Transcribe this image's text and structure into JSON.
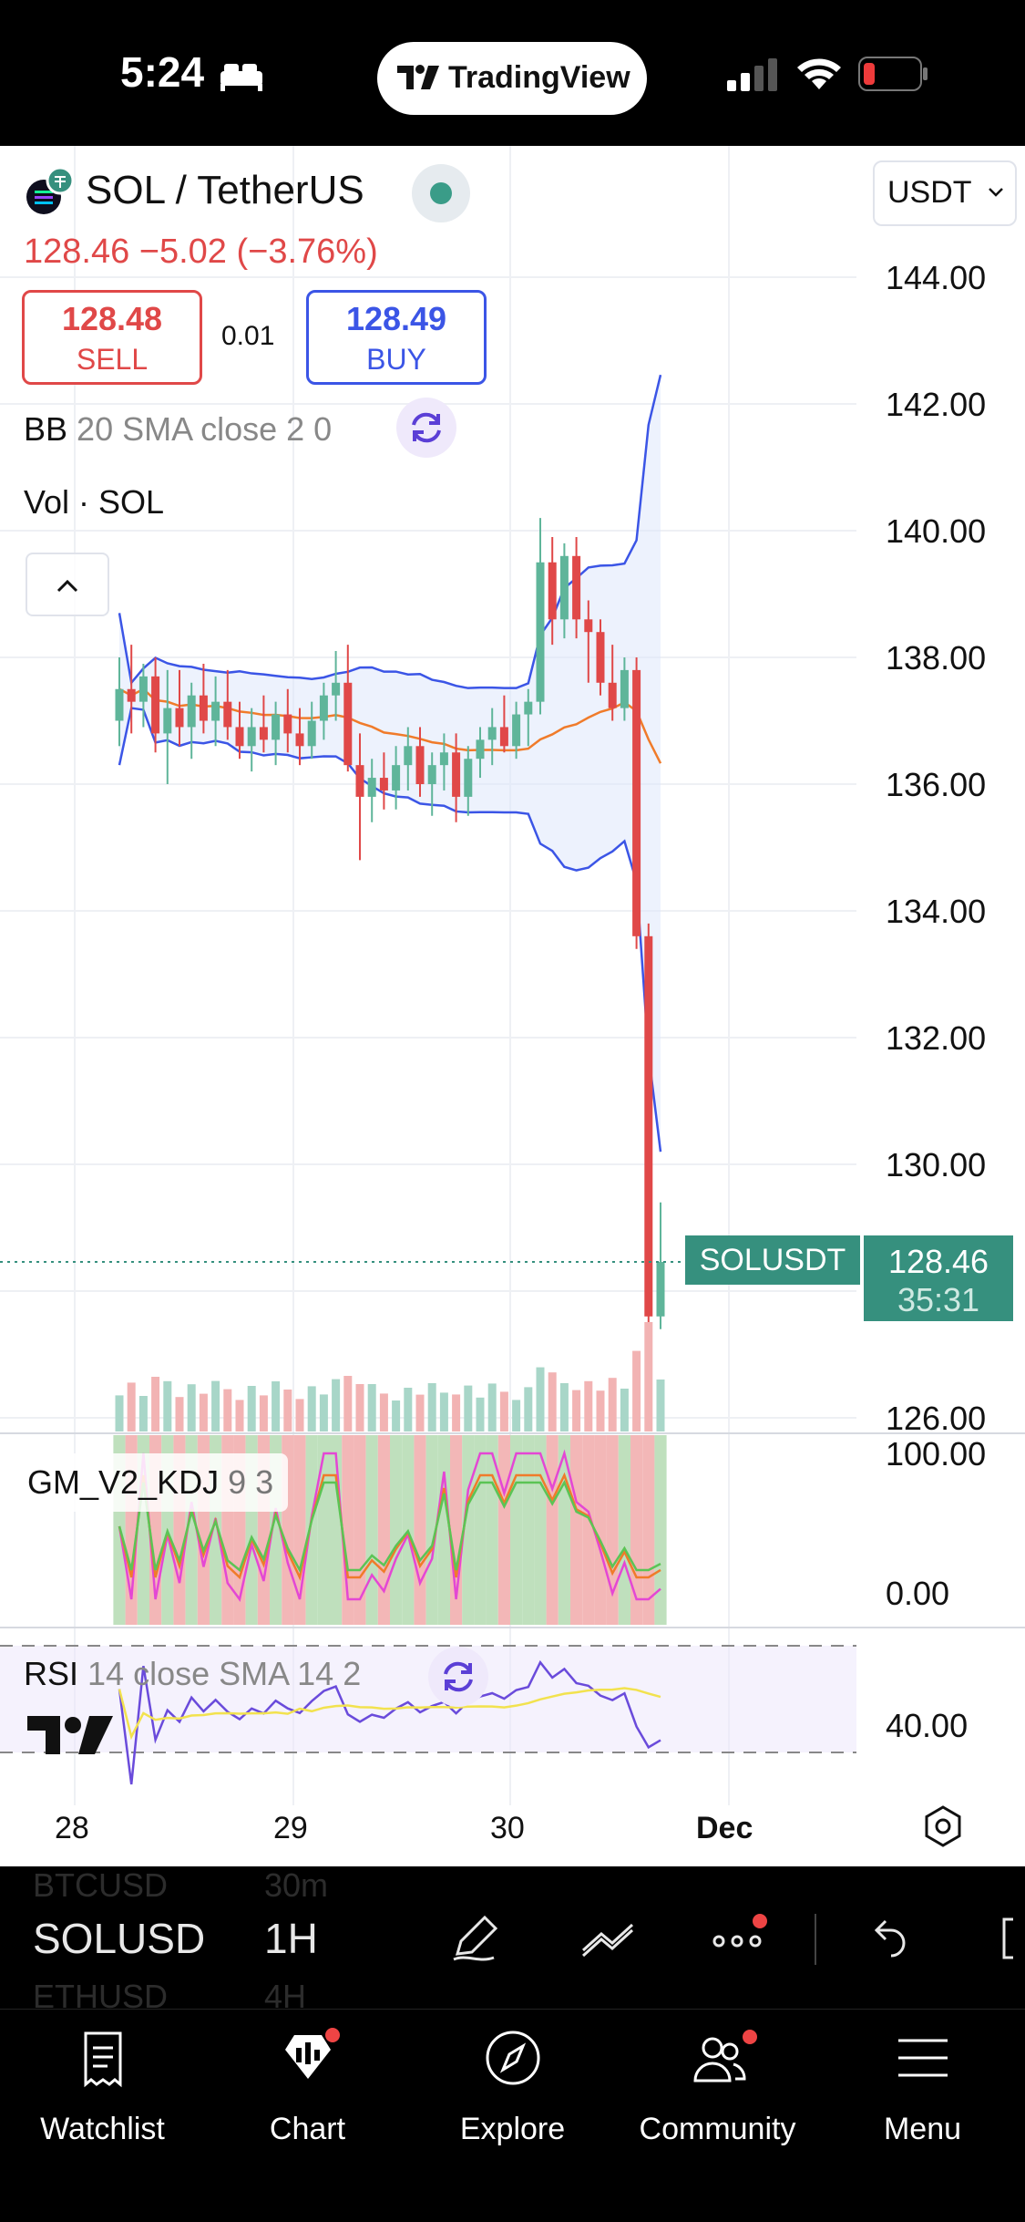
{
  "status_bar": {
    "time": "5:24",
    "app_pill": "TradingView"
  },
  "header": {
    "symbol": "SOL / TetherUS",
    "currency": "USDT",
    "quote": "128.46  −5.02 (−3.76%)",
    "sell": {
      "price": "128.48",
      "label": "SELL"
    },
    "buy": {
      "price": "128.49",
      "label": "BUY"
    },
    "spread": "0.01"
  },
  "indicators": {
    "bb": {
      "name": "BB",
      "params": "20 SMA close 2 0"
    },
    "vol": "Vol · SOL",
    "kdj": {
      "name": "GM_V2_KDJ",
      "params": "9 3"
    },
    "rsi": {
      "name": "RSI",
      "params": "14 close SMA 14 2"
    }
  },
  "axis": {
    "price_ticks": [
      "144.00",
      "142.00",
      "140.00",
      "138.00",
      "136.00",
      "134.00",
      "132.00",
      "130.00",
      "126.00"
    ],
    "kdj_ticks": [
      "100.00",
      "0.00"
    ],
    "rsi_ticks": [
      "40.00"
    ],
    "x_ticks": [
      "28",
      "29",
      "30",
      "Dec"
    ]
  },
  "last_price": {
    "symbol_tag": "SOLUSDT",
    "price": "128.46",
    "countdown": "35:31"
  },
  "toolbar": {
    "symbol": "SOLUSD",
    "interval": "1H",
    "ghost_prev_symbol": "BTCUSD",
    "ghost_next_symbol": "ETHUSD",
    "ghost_prev_interval": "30m",
    "ghost_next_interval": "4H"
  },
  "tabs": [
    {
      "label": "Watchlist",
      "icon": "watchlist-icon"
    },
    {
      "label": "Chart",
      "icon": "chart-icon"
    },
    {
      "label": "Explore",
      "icon": "compass-icon"
    },
    {
      "label": "Community",
      "icon": "community-icon"
    },
    {
      "label": "Menu",
      "icon": "menu-icon"
    }
  ],
  "colors": {
    "up": "#5fb59a",
    "down": "#e04848",
    "bb_band": "#3b55e6",
    "bb_basis": "#f07b2a",
    "accent": "#36907e"
  },
  "chart_data": {
    "type": "candlestick",
    "symbol": "SOL / TetherUS",
    "interval": "1H",
    "ylim": [
      125.5,
      145
    ],
    "candles": [
      {
        "o": 137.0,
        "h": 138.0,
        "l": 136.6,
        "c": 137.5
      },
      {
        "o": 137.5,
        "h": 138.2,
        "l": 136.8,
        "c": 137.3
      },
      {
        "o": 137.3,
        "h": 137.9,
        "l": 136.9,
        "c": 137.7
      },
      {
        "o": 137.7,
        "h": 138.0,
        "l": 136.5,
        "c": 136.8
      },
      {
        "o": 136.8,
        "h": 137.8,
        "l": 136.0,
        "c": 137.2
      },
      {
        "o": 137.2,
        "h": 137.8,
        "l": 136.6,
        "c": 136.9
      },
      {
        "o": 136.9,
        "h": 137.6,
        "l": 136.4,
        "c": 137.4
      },
      {
        "o": 137.4,
        "h": 137.9,
        "l": 136.8,
        "c": 137.0
      },
      {
        "o": 137.0,
        "h": 137.7,
        "l": 136.6,
        "c": 137.3
      },
      {
        "o": 137.3,
        "h": 137.8,
        "l": 136.7,
        "c": 136.9
      },
      {
        "o": 136.9,
        "h": 137.3,
        "l": 136.4,
        "c": 136.6
      },
      {
        "o": 136.6,
        "h": 137.2,
        "l": 136.2,
        "c": 136.9
      },
      {
        "o": 136.9,
        "h": 137.4,
        "l": 136.5,
        "c": 136.7
      },
      {
        "o": 136.7,
        "h": 137.3,
        "l": 136.3,
        "c": 137.1
      },
      {
        "o": 137.1,
        "h": 137.5,
        "l": 136.5,
        "c": 136.8
      },
      {
        "o": 136.8,
        "h": 137.2,
        "l": 136.3,
        "c": 136.6
      },
      {
        "o": 136.6,
        "h": 137.3,
        "l": 136.4,
        "c": 137.0
      },
      {
        "o": 137.0,
        "h": 137.6,
        "l": 136.7,
        "c": 137.4
      },
      {
        "o": 137.4,
        "h": 138.1,
        "l": 137.0,
        "c": 137.6
      },
      {
        "o": 137.6,
        "h": 138.2,
        "l": 136.2,
        "c": 136.3
      },
      {
        "o": 136.3,
        "h": 136.8,
        "l": 134.8,
        "c": 135.8
      },
      {
        "o": 135.8,
        "h": 136.4,
        "l": 135.4,
        "c": 136.1
      },
      {
        "o": 136.1,
        "h": 136.5,
        "l": 135.6,
        "c": 135.9
      },
      {
        "o": 135.9,
        "h": 136.6,
        "l": 135.6,
        "c": 136.3
      },
      {
        "o": 136.3,
        "h": 136.9,
        "l": 135.9,
        "c": 136.6
      },
      {
        "o": 136.6,
        "h": 136.9,
        "l": 135.8,
        "c": 136.0
      },
      {
        "o": 136.0,
        "h": 136.5,
        "l": 135.5,
        "c": 136.3
      },
      {
        "o": 136.3,
        "h": 136.8,
        "l": 135.9,
        "c": 136.5
      },
      {
        "o": 136.5,
        "h": 136.8,
        "l": 135.4,
        "c": 135.8
      },
      {
        "o": 135.8,
        "h": 136.6,
        "l": 135.5,
        "c": 136.4
      },
      {
        "o": 136.4,
        "h": 136.9,
        "l": 136.1,
        "c": 136.7
      },
      {
        "o": 136.7,
        "h": 137.2,
        "l": 136.3,
        "c": 136.9
      },
      {
        "o": 136.9,
        "h": 137.4,
        "l": 136.5,
        "c": 136.6
      },
      {
        "o": 136.6,
        "h": 137.3,
        "l": 136.4,
        "c": 137.1
      },
      {
        "o": 137.1,
        "h": 137.5,
        "l": 136.6,
        "c": 137.3
      },
      {
        "o": 137.3,
        "h": 140.2,
        "l": 137.1,
        "c": 139.5
      },
      {
        "o": 139.5,
        "h": 139.9,
        "l": 138.2,
        "c": 138.6
      },
      {
        "o": 138.6,
        "h": 139.8,
        "l": 138.3,
        "c": 139.6
      },
      {
        "o": 139.6,
        "h": 139.9,
        "l": 138.3,
        "c": 138.6
      },
      {
        "o": 138.6,
        "h": 138.9,
        "l": 137.6,
        "c": 138.4
      },
      {
        "o": 138.4,
        "h": 138.6,
        "l": 137.4,
        "c": 137.6
      },
      {
        "o": 137.6,
        "h": 138.2,
        "l": 137.0,
        "c": 137.2
      },
      {
        "o": 137.2,
        "h": 138.0,
        "l": 137.0,
        "c": 137.8
      },
      {
        "o": 137.8,
        "h": 138.0,
        "l": 133.4,
        "c": 133.6
      },
      {
        "o": 133.6,
        "h": 133.8,
        "l": 127.3,
        "c": 127.6
      },
      {
        "o": 127.6,
        "h": 129.4,
        "l": 127.4,
        "c": 128.46
      }
    ]
  }
}
